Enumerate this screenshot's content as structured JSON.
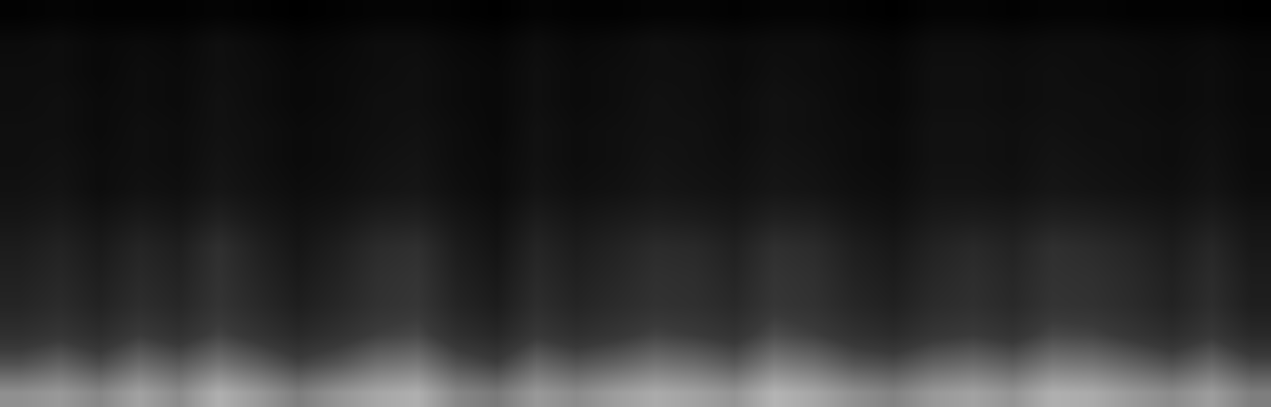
{
  "chart_data": {
    "type": "heatmap",
    "tick_labels": false,
    "z": [
      [
        48,
        50,
        46,
        52,
        47,
        55,
        50,
        44,
        49,
        53,
        55,
        46,
        43,
        50,
        47,
        51,
        54,
        52,
        49,
        56,
        53,
        48,
        45,
        50,
        52,
        49,
        55,
        54,
        50,
        47,
        51,
        44
      ],
      [
        34,
        38,
        33,
        40,
        36,
        42,
        37,
        31,
        35,
        41,
        43,
        34,
        30,
        39,
        35,
        38,
        42,
        40,
        36,
        44,
        41,
        35,
        33,
        38,
        40,
        37,
        43,
        42,
        38,
        34,
        39,
        32
      ],
      [
        24,
        27,
        23,
        29,
        25,
        31,
        26,
        21,
        25,
        30,
        32,
        24,
        20,
        28,
        24,
        27,
        31,
        29,
        26,
        33,
        30,
        25,
        22,
        27,
        29,
        26,
        32,
        31,
        27,
        23,
        28,
        21
      ],
      [
        19,
        22,
        18,
        23,
        20,
        26,
        21,
        16,
        20,
        25,
        27,
        19,
        15,
        23,
        19,
        22,
        25,
        24,
        21,
        27,
        25,
        20,
        17,
        22,
        24,
        21,
        26,
        25,
        22,
        18,
        23,
        16
      ],
      [
        17,
        20,
        16,
        21,
        18,
        25,
        19,
        14,
        18,
        24,
        26,
        17,
        13,
        21,
        17,
        20,
        24,
        23,
        19,
        26,
        24,
        18,
        15,
        20,
        23,
        20,
        25,
        24,
        21,
        17,
        22,
        15
      ],
      [
        15,
        18,
        14,
        19,
        16,
        24,
        17,
        12,
        16,
        22,
        24,
        15,
        11,
        19,
        15,
        18,
        22,
        21,
        17,
        24,
        22,
        16,
        13,
        18,
        21,
        18,
        24,
        22,
        19,
        15,
        20,
        13
      ],
      [
        12,
        14,
        11,
        14,
        12,
        17,
        13,
        10,
        12,
        16,
        17,
        12,
        9,
        15,
        12,
        14,
        16,
        15,
        13,
        17,
        16,
        12,
        10,
        14,
        15,
        14,
        17,
        16,
        14,
        12,
        15,
        11
      ],
      [
        10,
        11,
        8,
        10,
        9,
        12,
        10,
        8,
        9,
        11,
        12,
        9,
        7,
        11,
        9,
        10,
        12,
        11,
        10,
        12,
        11,
        9,
        8,
        11,
        11,
        10,
        12,
        11,
        10,
        9,
        11,
        8
      ],
      [
        9,
        10,
        8,
        9,
        8,
        11,
        9,
        7,
        8,
        10,
        11,
        8,
        7,
        10,
        8,
        9,
        11,
        10,
        9,
        11,
        10,
        8,
        7,
        10,
        10,
        9,
        11,
        10,
        9,
        8,
        10,
        7
      ],
      [
        9,
        9,
        7,
        9,
        8,
        10,
        9,
        7,
        8,
        9,
        10,
        8,
        6,
        10,
        8,
        9,
        10,
        10,
        8,
        10,
        9,
        8,
        7,
        10,
        10,
        9,
        10,
        9,
        9,
        8,
        9,
        7
      ],
      [
        8,
        9,
        7,
        8,
        7,
        10,
        8,
        6,
        7,
        9,
        9,
        7,
        6,
        9,
        7,
        8,
        10,
        9,
        8,
        10,
        9,
        7,
        6,
        9,
        9,
        8,
        9,
        9,
        8,
        7,
        8,
        6
      ],
      [
        8,
        8,
        6,
        8,
        7,
        9,
        8,
        6,
        7,
        8,
        9,
        7,
        6,
        9,
        7,
        8,
        9,
        9,
        7,
        9,
        8,
        7,
        6,
        9,
        9,
        8,
        9,
        8,
        8,
        7,
        8,
        6
      ],
      [
        7,
        8,
        6,
        7,
        6,
        9,
        7,
        5,
        6,
        8,
        8,
        6,
        5,
        8,
        6,
        7,
        9,
        8,
        7,
        8,
        8,
        6,
        5,
        8,
        8,
        7,
        8,
        8,
        7,
        6,
        7,
        5
      ],
      [
        3,
        4,
        3,
        3,
        3,
        4,
        3,
        2,
        3,
        4,
        4,
        3,
        2,
        4,
        3,
        3,
        4,
        4,
        3,
        4,
        4,
        3,
        2,
        4,
        4,
        3,
        4,
        4,
        3,
        3,
        3,
        2
      ]
    ]
  }
}
